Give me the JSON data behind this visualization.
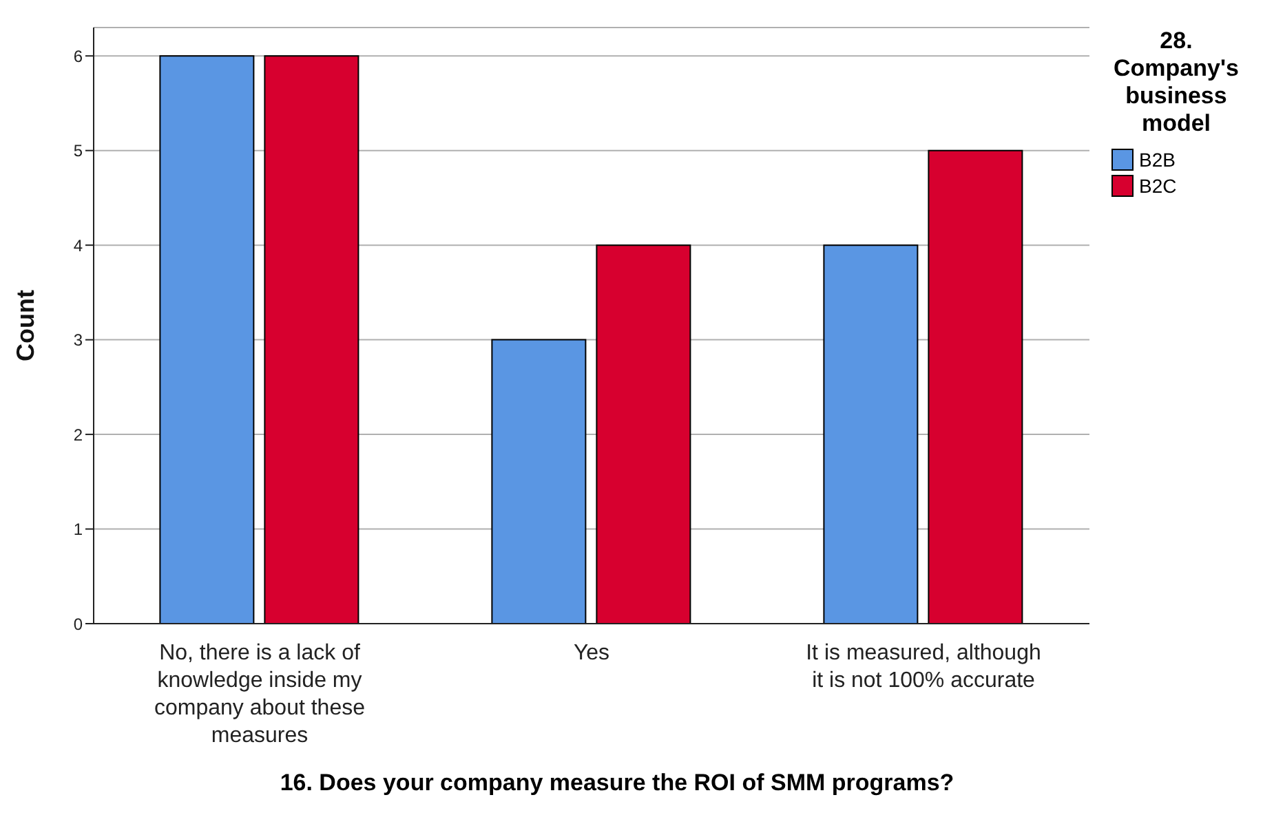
{
  "chart_data": {
    "type": "bar",
    "xlabel": "16. Does your company measure the ROI of SMM programs?",
    "ylabel": "Count",
    "legend_title": "28. Company's business model",
    "categories": [
      "No, there is a lack of knowledge inside my company about these measures",
      "Yes",
      "It is measured, although it is not 100% accurate"
    ],
    "series": [
      {
        "name": "B2B",
        "color": "#5a96e3",
        "values": [
          6,
          3,
          4
        ]
      },
      {
        "name": "B2C",
        "color": "#d7002f",
        "values": [
          6,
          4,
          5
        ]
      }
    ],
    "ylim": [
      0,
      6.3
    ],
    "yticks": [
      0,
      1,
      2,
      3,
      4,
      5,
      6
    ],
    "grid": "y",
    "legend": "top right"
  }
}
